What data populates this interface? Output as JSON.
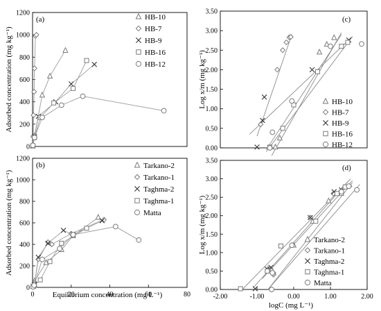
{
  "figure": {
    "xlabel_left": "Equilibrium concentration  (mg L⁻¹)",
    "xlabel_right": "logC  (mg L⁻¹)"
  },
  "chart_data": [
    {
      "id": "a",
      "type": "scatter",
      "panel_label": "(a)",
      "xlabel": "",
      "ylabel": "Adsorbed concentration  (mg kg⁻¹)",
      "xlim": [
        0,
        80
      ],
      "ylim": [
        0,
        1200
      ],
      "xticks": [],
      "yticks": [
        0,
        200,
        400,
        600,
        800,
        1000,
        1200
      ],
      "legend": "top-right",
      "series": [
        {
          "name": "HB-10",
          "marker": "triangle",
          "x": [
            0.1,
            1,
            5,
            9,
            17
          ],
          "y": [
            5,
            95,
            460,
            630,
            860
          ]
        },
        {
          "name": "HB-7",
          "marker": "diamond",
          "x": [
            0.1,
            0.3,
            0.5,
            0.8,
            1,
            1.5,
            2
          ],
          "y": [
            10,
            90,
            280,
            490,
            700,
            990,
            1000
          ]
        },
        {
          "name": "HB-9",
          "marker": "x",
          "x": [
            0.1,
            1,
            3,
            12,
            20,
            32
          ],
          "y": [
            5,
            90,
            270,
            400,
            560,
            735
          ]
        },
        {
          "name": "HB-16",
          "marker": "square",
          "x": [
            0.2,
            1,
            4,
            11,
            21,
            28
          ],
          "y": [
            5,
            80,
            260,
            390,
            520,
            770
          ]
        },
        {
          "name": "HB-12",
          "marker": "circle",
          "x": [
            0.2,
            1,
            5,
            15,
            26,
            68
          ],
          "y": [
            10,
            80,
            260,
            370,
            450,
            320
          ]
        }
      ]
    },
    {
      "id": "b",
      "type": "scatter",
      "panel_label": "(b)",
      "xlabel": "Equilibrium concentration  (mg L⁻¹)",
      "ylabel": "Adsorbed concentration  (mg kg⁻¹)",
      "xlim": [
        0,
        80
      ],
      "ylim": [
        0,
        1200
      ],
      "xticks": [
        0,
        20,
        40,
        60,
        80
      ],
      "yticks": [
        0,
        200,
        400,
        600,
        800,
        1000,
        1200
      ],
      "legend": "top-right",
      "series": [
        {
          "name": "Tarkano-2",
          "marker": "triangle",
          "x": [
            0.3,
            1,
            7,
            15,
            21,
            34
          ],
          "y": [
            10,
            60,
            230,
            350,
            480,
            650
          ]
        },
        {
          "name": "Tarkano-1",
          "marker": "diamond",
          "x": [
            0.3,
            1,
            3,
            8,
            10,
            20,
            37
          ],
          "y": [
            10,
            40,
            260,
            420,
            400,
            500,
            630
          ]
        },
        {
          "name": "Taghma-2",
          "marker": "x",
          "x": [
            0.3,
            1,
            3,
            8,
            16,
            21,
            36
          ],
          "y": [
            10,
            30,
            280,
            410,
            530,
            490,
            620
          ]
        },
        {
          "name": "Taghma-1",
          "marker": "square",
          "x": [
            0.3,
            1,
            4,
            9,
            15,
            28
          ],
          "y": [
            10,
            20,
            70,
            240,
            410,
            550
          ]
        },
        {
          "name": "Matta",
          "marker": "circle",
          "x": [
            0.3,
            0.8,
            5,
            14,
            21,
            43,
            55
          ],
          "y": [
            5,
            20,
            260,
            360,
            490,
            565,
            440
          ]
        }
      ]
    },
    {
      "id": "c",
      "type": "scatter",
      "panel_label": "(c)",
      "xlabel": "",
      "ylabel": "Log x/m (mg kg⁻¹)",
      "xlim": [
        -2,
        2
      ],
      "ylim": [
        0,
        3.5
      ],
      "xticks": [],
      "yticks": [
        0,
        0.5,
        1,
        1.5,
        2,
        2.5,
        3,
        3.5
      ],
      "legend": "bottom-right",
      "series": [
        {
          "name": "HB-10",
          "marker": "triangle",
          "x": [
            -0.5,
            -0.38,
            0.7,
            0.9,
            1.1
          ],
          "y": [
            0.02,
            0.25,
            2.45,
            2.65,
            2.82
          ]
        },
        {
          "name": "HB-7",
          "marker": "diamond",
          "x": [
            -0.9,
            -0.45,
            -0.3,
            -0.2,
            -0.12,
            -0.08
          ],
          "y": [
            0.6,
            2.0,
            2.5,
            2.7,
            2.83,
            2.84
          ]
        },
        {
          "name": "HB-9",
          "marker": "x",
          "x": [
            -1.0,
            -0.85,
            -0.8,
            0.5,
            1.3,
            1.5
          ],
          "y": [
            0.02,
            0.7,
            1.3,
            2.0,
            2.6,
            2.76
          ]
        },
        {
          "name": "HB-16",
          "marker": "square",
          "x": [
            -0.65,
            -0.3,
            0.0,
            0.65,
            1.3,
            1.47
          ],
          "y": [
            0.02,
            0.5,
            1.1,
            1.95,
            2.6,
            2.7
          ]
        },
        {
          "name": "HB-12",
          "marker": "circle",
          "x": [
            -0.65,
            -0.58,
            -0.05,
            1.0,
            1.85
          ],
          "y": [
            0.0,
            0.4,
            1.2,
            2.6,
            2.66
          ]
        }
      ],
      "fit_lines": [
        {
          "series": "HB-10",
          "x": [
            -0.6,
            1.3
          ],
          "y": [
            -0.2,
            2.95
          ]
        },
        {
          "series": "HB-7",
          "x": [
            -1.0,
            -0.05
          ],
          "y": [
            0.3,
            2.9
          ]
        },
        {
          "series": "HB-9",
          "x": [
            -1.2,
            1.6
          ],
          "y": [
            0.35,
            2.85
          ]
        },
        {
          "series": "HB-16",
          "x": [
            -0.75,
            1.6
          ],
          "y": [
            -0.1,
            2.85
          ]
        },
        {
          "series": "HB-12",
          "x": [
            -0.75,
            1.3
          ],
          "y": [
            -0.05,
            2.9
          ]
        }
      ]
    },
    {
      "id": "d",
      "type": "scatter",
      "panel_label": "(d)",
      "xlabel": "logC  (mg L⁻¹)",
      "ylabel": "Log x/m (mg kg⁻¹)",
      "xlim": [
        -2,
        2
      ],
      "ylim": [
        0,
        3.5
      ],
      "xticks": [
        "-2.00",
        "-1.00",
        "0.00",
        "1.00",
        "2.00"
      ],
      "yticks": [
        0,
        0.5,
        1,
        1.5,
        2,
        2.5,
        3,
        3.5
      ],
      "legend": "bottom-right",
      "series": [
        {
          "name": "Tarkano-2",
          "marker": "triangle",
          "x": [
            -0.7,
            0.0,
            0.52,
            0.95,
            1.3
          ],
          "y": [
            0.55,
            1.2,
            1.85,
            2.4,
            2.6
          ]
        },
        {
          "name": "Tarkano-1",
          "marker": "diamond",
          "x": [
            -0.6,
            -0.55,
            -0.55,
            0.45,
            1.08,
            1.52
          ],
          "y": [
            0.0,
            0.4,
            0.45,
            1.95,
            2.6,
            2.8
          ]
        },
        {
          "name": "Taghma-2",
          "marker": "x",
          "x": [
            -1.05,
            -0.72,
            -0.62,
            0.45,
            1.1,
            1.3
          ],
          "y": [
            0.02,
            0.55,
            0.6,
            1.95,
            2.65,
            2.7
          ]
        },
        {
          "name": "Taghma-1",
          "marker": "square",
          "x": [
            -1.45,
            -0.72,
            -0.35,
            0.6,
            1.18,
            1.4
          ],
          "y": [
            0.02,
            0.5,
            1.18,
            1.85,
            2.6,
            2.78
          ]
        },
        {
          "name": "Matta",
          "marker": "circle",
          "x": [
            -0.6,
            -0.58,
            -0.05,
            1.3,
            1.5,
            1.72
          ],
          "y": [
            0.0,
            0.45,
            1.2,
            2.65,
            2.8,
            2.7
          ]
        }
      ],
      "fit_lines": [
        {
          "series": "Tarkano-2",
          "x": [
            -0.85,
            1.6
          ],
          "y": [
            0.3,
            2.95
          ]
        },
        {
          "series": "Tarkano-1",
          "x": [
            -0.7,
            1.6
          ],
          "y": [
            0.0,
            2.9
          ]
        },
        {
          "series": "Taghma-2",
          "x": [
            -1.1,
            1.5
          ],
          "y": [
            0.05,
            2.95
          ]
        },
        {
          "series": "Taghma-1",
          "x": [
            -1.4,
            1.55
          ],
          "y": [
            0.0,
            3.0
          ]
        },
        {
          "series": "Matta",
          "x": [
            -0.7,
            1.8
          ],
          "y": [
            0.0,
            2.85
          ]
        }
      ]
    }
  ]
}
